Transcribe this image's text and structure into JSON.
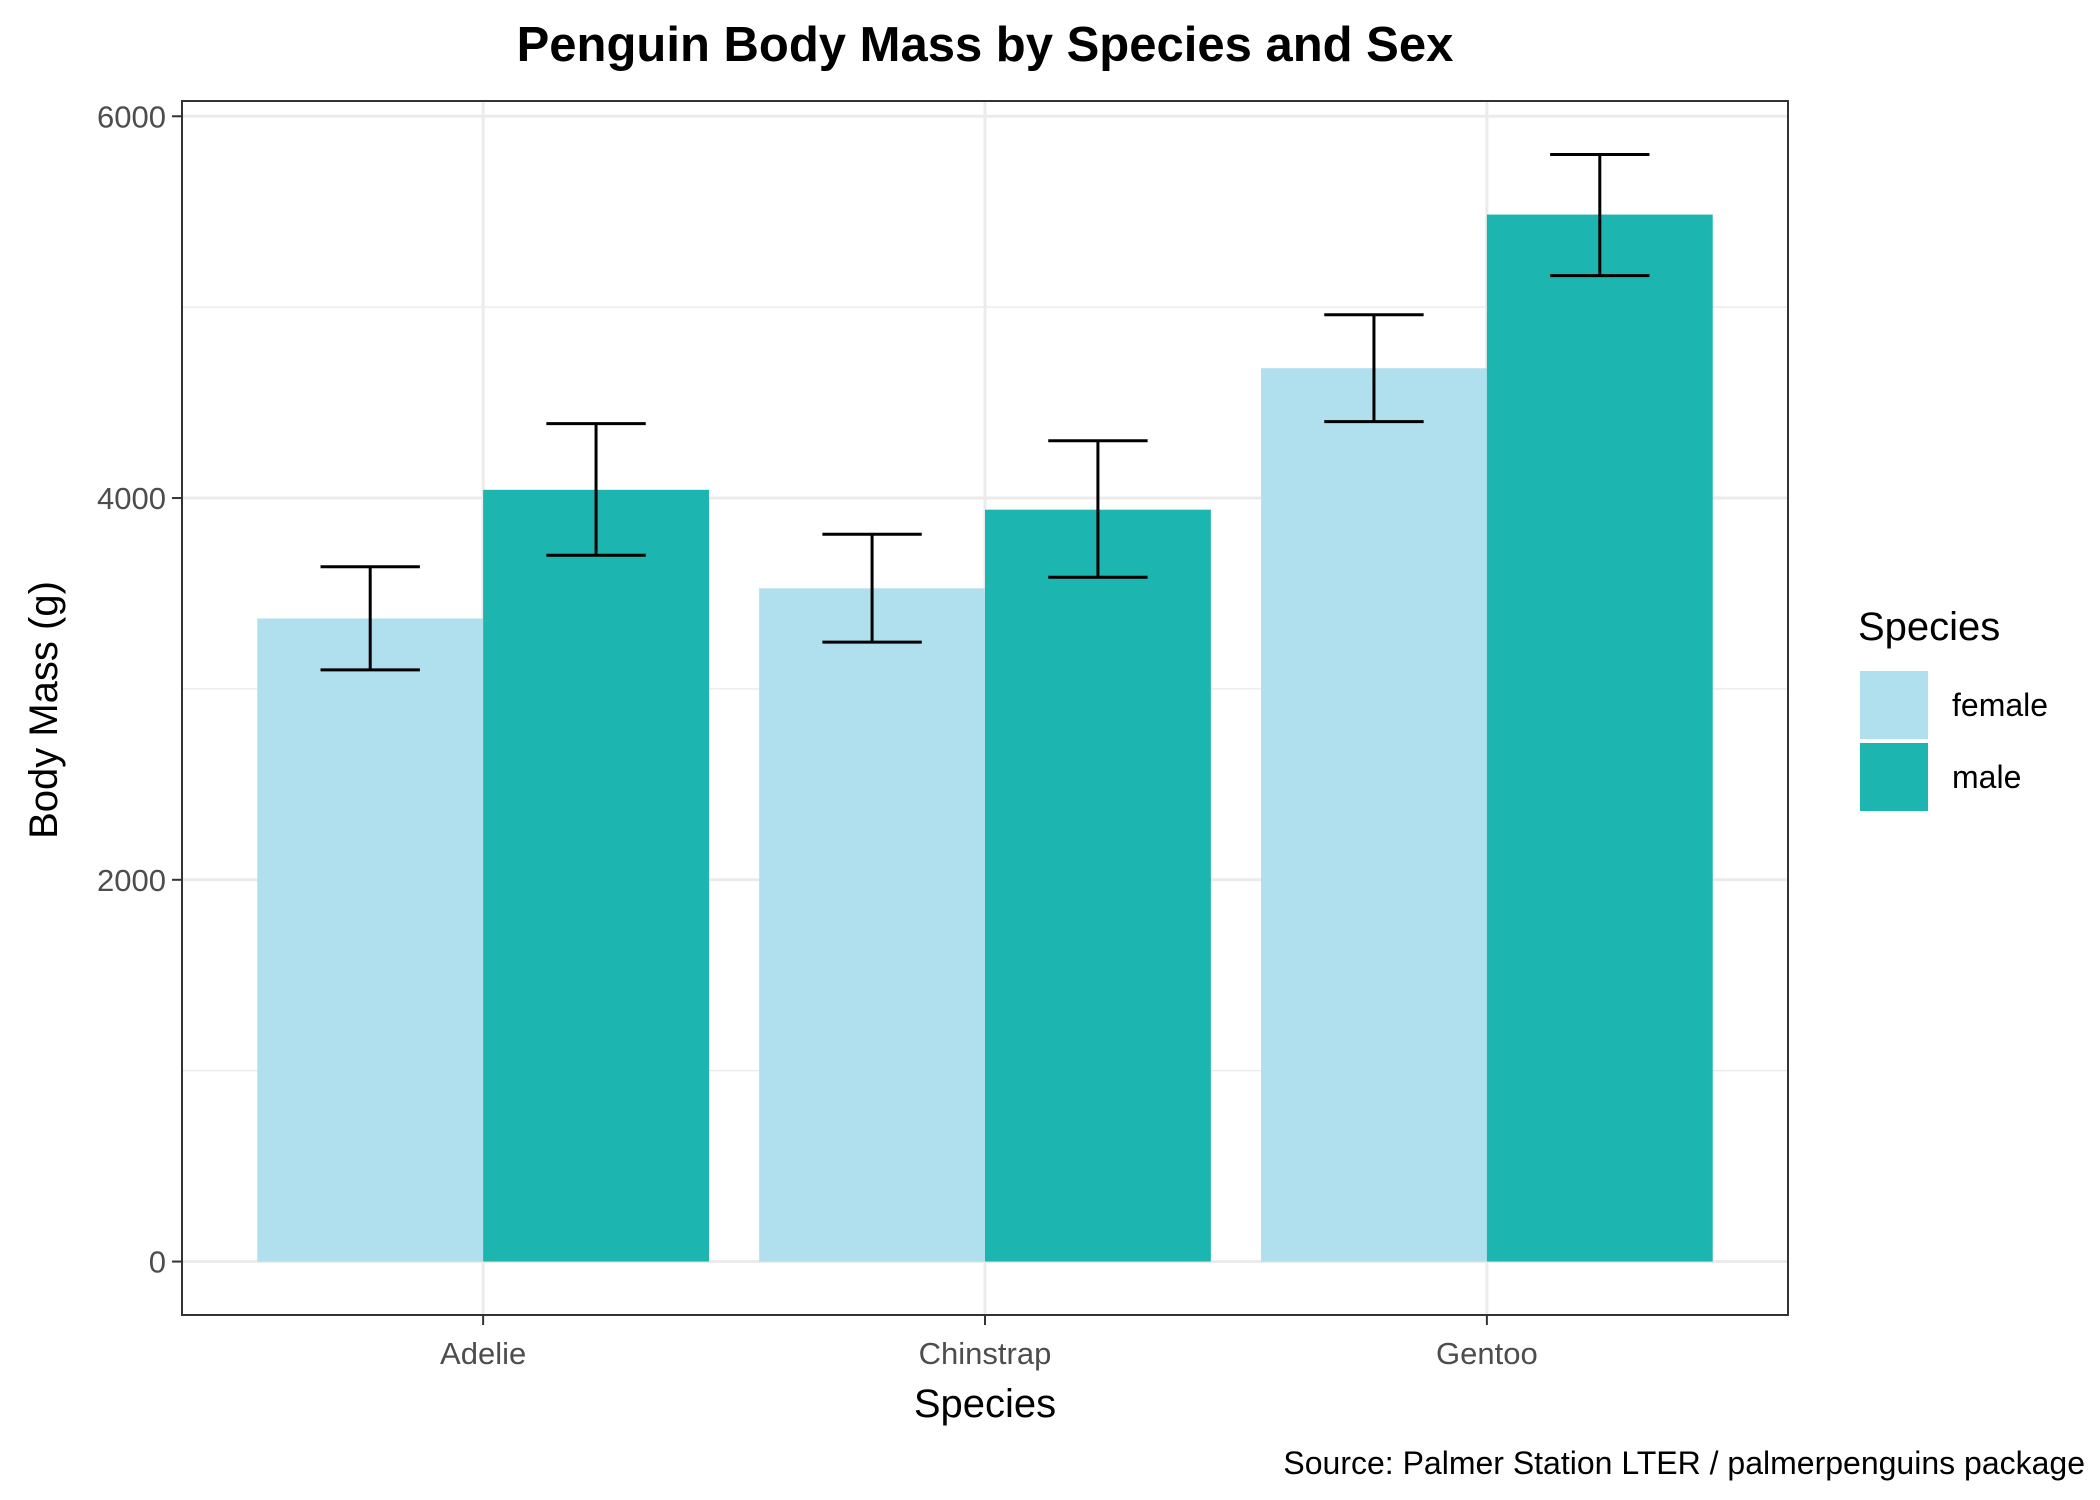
{
  "chart_data": {
    "type": "bar",
    "title": "Penguin Body Mass by Species and Sex",
    "xlabel": "Species",
    "ylabel": "Body Mass (g)",
    "caption": "Source: Palmer Station LTER / palmerpenguins package",
    "categories": [
      "Adelie",
      "Chinstrap",
      "Gentoo"
    ],
    "ylim": [
      -280,
      6080
    ],
    "yticks": [
      0,
      2000,
      4000,
      6000
    ],
    "grid": true,
    "legend": {
      "title": "Species",
      "position": "right"
    },
    "series": [
      {
        "name": "female",
        "color": "#b0dfee",
        "values": [
          3369,
          3527,
          4680
        ],
        "err_low": [
          3100,
          3245,
          4400
        ],
        "err_high": [
          3640,
          3810,
          4960
        ]
      },
      {
        "name": "male",
        "color": "#1cb5b0",
        "values": [
          4043,
          3939,
          5485
        ],
        "err_low": [
          3700,
          3585,
          5165
        ],
        "err_high": [
          4390,
          4300,
          5800
        ]
      }
    ]
  }
}
